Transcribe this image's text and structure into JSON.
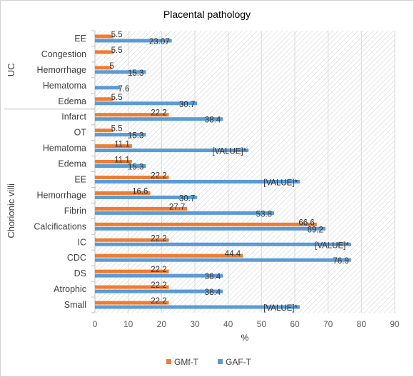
{
  "chart_data": {
    "type": "bar",
    "orientation": "horizontal",
    "title": "Placental pathology",
    "xlabel": "%",
    "xlim": [
      0,
      90
    ],
    "x_ticks": [
      "0",
      "10",
      "20",
      "30",
      "40",
      "50",
      "60",
      "70",
      "80",
      "90"
    ],
    "grid": true,
    "legend_position": "bottom",
    "groups": [
      {
        "name": "UC",
        "categories": [
          "EE",
          "Congestion",
          "Hemorrhage",
          "Hematoma",
          "Edema"
        ]
      },
      {
        "name": "Chorionic villi",
        "categories": [
          "Infarct",
          "OT",
          "Hematoma",
          "Edema",
          "EE",
          "Hemorrhage",
          "Fibrin",
          "Calcifications",
          "IC",
          "CDC",
          "DS",
          "Atrophic",
          "Small"
        ]
      }
    ],
    "categories": [
      "EE",
      "Congestion",
      "Hemorrhage",
      "Hematoma",
      "Edema",
      "Infarct",
      "OT",
      "Hematoma",
      "Edema",
      "EE",
      "Hemorrhage",
      "Fibrin",
      "Calcifications",
      "IC",
      "CDC",
      "DS",
      "Atrophic",
      "Small"
    ],
    "series": [
      {
        "name": "GMf-T",
        "color": "#ED7D31",
        "values": [
          5.5,
          5.5,
          5,
          null,
          5.5,
          22.2,
          5.5,
          11.1,
          11.1,
          22.2,
          16.6,
          27.7,
          66.6,
          22.2,
          44.4,
          22.2,
          22.2,
          22.2
        ],
        "labels": [
          "5.5",
          "5.5",
          "5",
          "",
          "5.5",
          "22.2",
          "5.5",
          "11.1",
          "11.1",
          "22.2",
          "16.6",
          "27.7",
          "66.6",
          "22.2",
          "44.4",
          "22.2",
          "22.2",
          "22.2"
        ]
      },
      {
        "name": "GAF-T",
        "color": "#5B9BD5",
        "values": [
          23.07,
          null,
          15.3,
          7.6,
          30.7,
          38.4,
          15.3,
          46.1,
          15.3,
          61.5,
          30.7,
          53.8,
          69.2,
          76.9,
          76.9,
          38.4,
          38.4,
          61.5
        ],
        "labels": [
          "23.07",
          "",
          "15.3",
          "7.6",
          "30.7",
          "38.4",
          "15.3",
          "[VALUE]*",
          "15.3",
          "[VALUE]*",
          "30.7",
          "53.8",
          "69.2",
          "[VALUE]*",
          "76.9",
          "38.4",
          "38.4",
          "[VALUE]*"
        ]
      }
    ]
  }
}
